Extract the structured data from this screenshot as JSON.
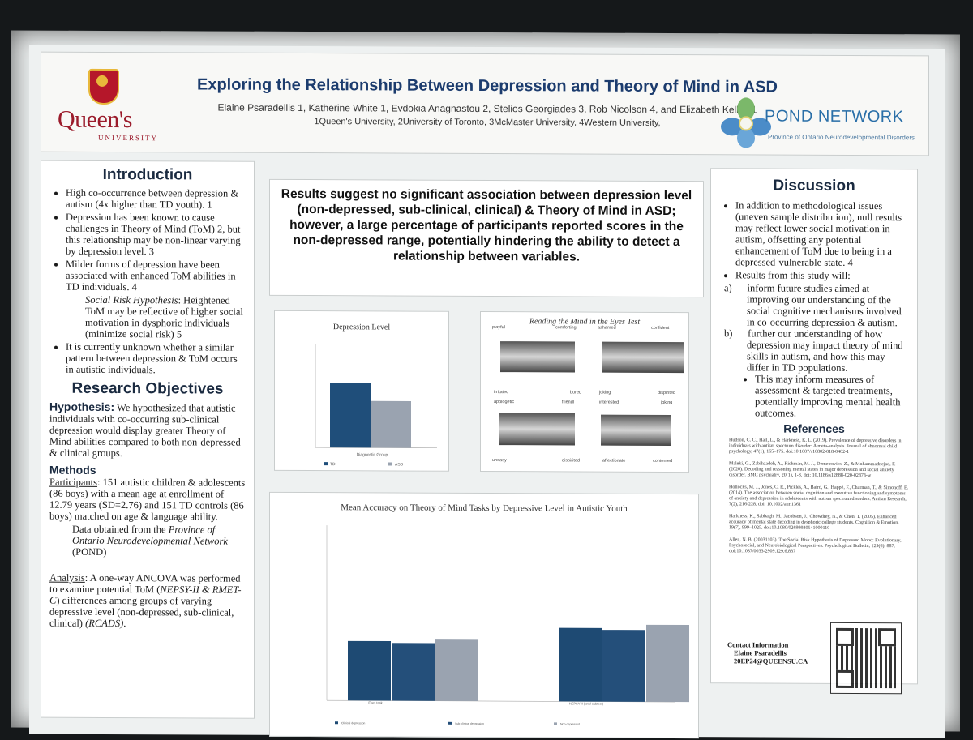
{
  "header": {
    "title": "Exploring the Relationship Between Depression and Theory of Mind in ASD",
    "authors": "Elaine Psaradellis 1, Katherine White 1, Evdokia Anagnastou 2, Stelios Georgiades 3, Rob Nicolson 4, and Elizabeth Kelley 1",
    "affiliations": "1Queen's University, 2University of Toronto, 3McMaster University, 4Western University,",
    "logo_left": "Queen's",
    "logo_left_sub": "UNIVERSITY",
    "logo_right": "POND NETWORK",
    "logo_right_sub": "Province of Ontario Neurodevelopmental Disorders"
  },
  "intro": {
    "heading": "Introduction",
    "items": [
      "High co-occurrence between depression & autism (4x higher than TD youth). 1",
      "Depression has been known to cause challenges in Theory of Mind (ToM) 2, but this relationship may be non-linear varying by depression level. 3",
      "Milder forms of depression have been associated with enhanced ToM abilities in TD individuals. 4"
    ],
    "social_risk_label": "Social Risk Hypothesis",
    "social_risk_text": ": Heightened ToM may be reflective of higher social motivation in dysphoric individuals (minimize social risk) 5",
    "last_item": "It is currently unknown whether a similar pattern between depression & ToM occurs in autistic individuals.",
    "objectives_heading": "Research Objectives",
    "hypothesis_label": "Hypothesis:",
    "hypothesis_text": " We hypothesized that autistic individuals with co-occurring sub-clinical depression would display greater Theory of Mind abilities compared to both non-depressed & clinical groups.",
    "methods_heading": "Methods",
    "participants_label": "Participants",
    "participants_text": ": 151 autistic children & adolescents (86 boys) with a mean age at enrollment of 12.79 years (SD=2.76) and 151 TD controls (86 boys) matched on age & language ability.",
    "data_text": "Data obtained from the ",
    "data_italic": "Province of Ontario Neurodevelopmental Network",
    "data_suffix": " (POND)",
    "analysis_label": "Analysis",
    "analysis_text": ": A one-way ANCOVA was performed to examine potential ToM (",
    "analysis_italic": "NEPSY-II & RMET-C",
    "analysis_text2": ") differences among groups of varying depressive level (non-depressed, sub-clinical, clinical) ",
    "analysis_italic2": "(RCADS)",
    "analysis_end": "."
  },
  "summary": "Results suggest no significant association between depression level (non-depressed, sub-clinical, clinical) & Theory of Mind in ASD; however, a large percentage of participants reported scores in the non-depressed range, potentially hindering the ability to detect a relationship between variables.",
  "chart1": {
    "title": "Depression Level",
    "xlabel": "Diagnostic Group",
    "legend": [
      "TD",
      "ASD"
    ],
    "values": [
      0.62,
      0.45
    ],
    "colors": [
      "#1f4e7a",
      "#9aa3b0"
    ]
  },
  "chart2": {
    "title": "Reading the Mind in the Eyes Test",
    "words_top": [
      "playful",
      "comforting",
      "ashamed",
      "confident"
    ],
    "words_mid": [
      "irritated",
      "bored",
      "joking",
      "dispirited"
    ],
    "words_mid2": [
      "apologetic",
      "friendl",
      "interested",
      "joking"
    ],
    "words_bot": [
      "uneasy",
      "dispirited",
      "affectionate",
      "contented"
    ]
  },
  "chart3": {
    "type": "bar",
    "title": "Mean Accuracy on Theory of Mind Tasks by Depressive Level in Autistic Youth",
    "categories": [
      "Eyes task",
      "NEPSY-II (total subtest)"
    ],
    "series": [
      {
        "name": "Clinical depression",
        "values": [
          0.34,
          0.42
        ],
        "color": "#1e4a73"
      },
      {
        "name": "Sub-clinical depression",
        "values": [
          0.33,
          0.41
        ],
        "color": "#244f7a"
      },
      {
        "name": "Non-depressed",
        "values": [
          0.35,
          0.44
        ],
        "color": "#9aa3b0"
      }
    ],
    "ylim": [
      0,
      1
    ]
  },
  "discussion": {
    "heading": "Discussion",
    "item1": "In addition to methodological issues (uneven sample distribution), null results may reflect lower social motivation in autism, offsetting any potential enhancement of ToM due to being in a depressed-vulnerable state. 4",
    "item2": "Results from this study will:",
    "a": "inform future studies aimed at improving our understanding of the social cognitive mechanisms involved in co-occurring depression & autism.",
    "b": "further our understanding of how depression may impact theory of mind skills in autism, and how this may differ in TD populations.",
    "item3": "This may inform measures of assessment & targeted treatments, potentially improving mental health outcomes.",
    "refs_heading": "References",
    "refs": [
      "Hudson, C. C., Hall, L., & Harkness, K. L. (2019). Prevalence of depressive disorders in individuals with autism spectrum disorder: A meta-analysis. Journal of abnormal child psychology, 47(1), 165–175. doi:10.1007/s10802-018-0402-1",
      "Maleki, G., Zabihzadeh, A., Richman, M. J., Demetrovics, Z., & Mohammadnejad, F. (2020). Decoding and reasoning mental states in major depression and social anxiety disorder. BMC psychiatry, 20(1), 1-8. doi: 10.1186/s12888-020-02873-w",
      "Hollocks, M. J., Jones, C. R., Pickles, A., Baird, G., Happé, F., Charman, T., & Simonoff, E. (2014). The association between social cognition and executive functioning and symptoms of anxiety and depression in adolescents with autism spectrum disorders. Autism Research, 7(2), 216-228. doi: 10.1002/aur.1361",
      "Harkness, K., Sabbagh, M., Jacobson, J., Chowdrey, N., & Chen, T. (2005). Enhanced accuracy of mental state decoding in dysphoric college students. Cognition & Emotion, 19(7), 999–1025. doi:10.1080/02699930541000110",
      "Allen, N. B. (20031103). The Social Risk Hypothesis of Depressed Mood: Evolutionary, Psychosocial, and Neurobiological Perspectives. Psychological Bulletin, 129(6), 887. doi:10.1037/0033-2909.129.6.887"
    ],
    "contact_heading": "Contact Information",
    "contact_name": "Elaine Psaradellis",
    "contact_email": "20EP24@QUEENSU.CA"
  }
}
